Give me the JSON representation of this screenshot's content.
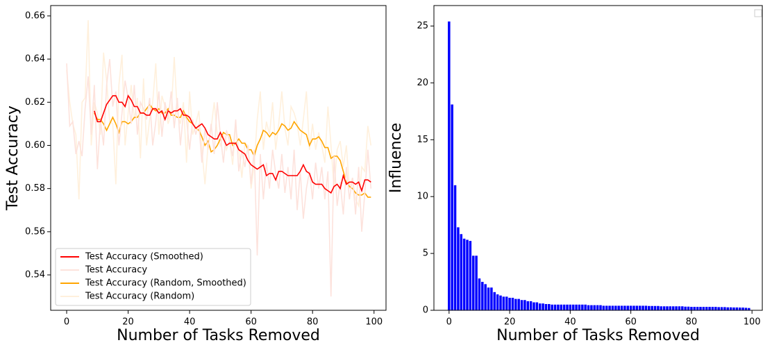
{
  "chart_data": [
    {
      "type": "line",
      "x_label": "Number of Tasks Removed",
      "y_label": "Test Accuracy",
      "x": [
        0,
        1,
        2,
        3,
        4,
        5,
        6,
        7,
        8,
        9,
        10,
        11,
        12,
        13,
        14,
        15,
        16,
        17,
        18,
        19,
        20,
        21,
        22,
        23,
        24,
        25,
        26,
        27,
        28,
        29,
        30,
        31,
        32,
        33,
        34,
        35,
        36,
        37,
        38,
        39,
        40,
        41,
        42,
        43,
        44,
        45,
        46,
        47,
        48,
        49,
        50,
        51,
        52,
        53,
        54,
        55,
        56,
        57,
        58,
        59,
        60,
        61,
        62,
        63,
        64,
        65,
        66,
        67,
        68,
        69,
        70,
        71,
        72,
        73,
        74,
        75,
        76,
        77,
        78,
        79,
        80,
        81,
        82,
        83,
        84,
        85,
        86,
        87,
        88,
        89,
        90,
        91,
        92,
        93,
        94,
        95,
        96,
        97,
        98,
        99
      ],
      "series": [
        {
          "name": "Test Accuracy (Smoothed)",
          "color": "#ff0000",
          "values": [
            null,
            null,
            null,
            null,
            null,
            null,
            null,
            null,
            null,
            0.616,
            0.611,
            0.611,
            0.615,
            0.619,
            0.621,
            0.623,
            0.623,
            0.62,
            0.62,
            0.618,
            0.623,
            0.621,
            0.618,
            0.618,
            0.615,
            0.615,
            0.614,
            0.614,
            0.617,
            0.617,
            0.615,
            0.616,
            0.612,
            0.616,
            0.615,
            0.616,
            0.616,
            0.617,
            0.614,
            0.614,
            0.613,
            0.61,
            0.608,
            0.609,
            0.61,
            0.608,
            0.605,
            0.604,
            0.603,
            0.603,
            0.606,
            0.603,
            0.6,
            0.601,
            0.601,
            0.601,
            0.598,
            0.597,
            0.596,
            0.593,
            0.591,
            0.59,
            0.589,
            0.59,
            0.591,
            0.586,
            0.587,
            0.587,
            0.584,
            0.588,
            0.588,
            0.587,
            0.586,
            0.586,
            0.586,
            0.586,
            0.588,
            0.591,
            0.588,
            0.587,
            0.583,
            0.582,
            0.582,
            0.582,
            0.58,
            0.579,
            0.578,
            0.581,
            0.582,
            0.58,
            0.586,
            0.582,
            0.583,
            0.583,
            0.582,
            0.583,
            0.579,
            0.584,
            0.584,
            0.583
          ]
        },
        {
          "name": "Test Accuracy",
          "color": "#fde2dc",
          "values": [
            0.638,
            0.609,
            0.611,
            0.596,
            0.602,
            0.595,
            0.617,
            0.632,
            0.605,
            0.628,
            0.589,
            0.612,
            0.6,
            0.628,
            0.64,
            0.618,
            0.625,
            0.6,
            0.615,
            0.63,
            0.622,
            0.61,
            0.628,
            0.605,
            0.62,
            0.617,
            0.612,
            0.622,
            0.6,
            0.611,
            0.625,
            0.604,
            0.62,
            0.612,
            0.625,
            0.608,
            0.622,
            0.6,
            0.615,
            0.612,
            0.598,
            0.612,
            0.605,
            0.61,
            0.592,
            0.608,
            0.598,
            0.61,
            0.596,
            0.62,
            0.605,
            0.592,
            0.607,
            0.602,
            0.595,
            0.612,
            0.588,
            0.598,
            0.59,
            0.6,
            0.582,
            0.598,
            0.549,
            0.596,
            0.575,
            0.592,
            0.58,
            0.598,
            0.587,
            0.58,
            0.596,
            0.578,
            0.59,
            0.575,
            0.598,
            0.57,
            0.588,
            0.566,
            0.58,
            0.588,
            0.575,
            0.592,
            0.58,
            0.59,
            0.575,
            0.588,
            0.53,
            0.595,
            0.572,
            0.583,
            0.568,
            0.59,
            0.575,
            0.585,
            0.568,
            0.59,
            0.56,
            0.578,
            0.598,
            0.58
          ]
        },
        {
          "name": "Test Accuracy (Random, Smoothed)",
          "color": "#ffa500",
          "values": [
            null,
            null,
            null,
            null,
            null,
            null,
            null,
            null,
            null,
            0.615,
            0.612,
            0.612,
            0.61,
            0.607,
            0.61,
            0.613,
            0.61,
            0.606,
            0.611,
            0.611,
            0.61,
            0.611,
            0.613,
            0.613,
            0.615,
            0.615,
            0.617,
            0.619,
            0.617,
            0.616,
            0.617,
            0.615,
            0.615,
            0.617,
            0.614,
            0.614,
            0.613,
            0.613,
            0.616,
            0.613,
            0.611,
            0.61,
            0.608,
            0.607,
            0.604,
            0.6,
            0.602,
            0.597,
            0.598,
            0.6,
            0.603,
            0.606,
            0.605,
            0.605,
            0.6,
            0.601,
            0.603,
            0.601,
            0.601,
            0.598,
            0.598,
            0.595,
            0.6,
            0.603,
            0.607,
            0.606,
            0.604,
            0.606,
            0.605,
            0.607,
            0.61,
            0.609,
            0.607,
            0.608,
            0.611,
            0.609,
            0.607,
            0.606,
            0.605,
            0.6,
            0.603,
            0.603,
            0.604,
            0.602,
            0.599,
            0.599,
            0.594,
            0.595,
            0.595,
            0.593,
            0.588,
            0.583,
            0.581,
            0.58,
            0.578,
            0.577,
            0.577,
            0.578,
            0.576,
            0.576
          ]
        },
        {
          "name": "Test Accuracy (Random)",
          "color": "#fff0dc",
          "values": [
            0.635,
            0.62,
            0.61,
            0.605,
            0.575,
            0.62,
            0.622,
            0.658,
            0.6,
            0.62,
            0.615,
            0.605,
            0.643,
            0.63,
            0.611,
            0.61,
            0.582,
            0.628,
            0.642,
            0.6,
            0.615,
            0.628,
            0.612,
            0.622,
            0.594,
            0.631,
            0.6,
            0.612,
            0.62,
            0.638,
            0.605,
            0.623,
            0.618,
            0.61,
            0.615,
            0.641,
            0.615,
            0.61,
            0.62,
            0.592,
            0.625,
            0.605,
            0.61,
            0.616,
            0.598,
            0.582,
            0.6,
            0.608,
            0.62,
            0.605,
            0.6,
            0.605,
            0.598,
            0.602,
            0.591,
            0.609,
            0.598,
            0.585,
            0.601,
            0.6,
            0.58,
            0.591,
            0.612,
            0.625,
            0.598,
            0.611,
            0.605,
            0.62,
            0.598,
            0.61,
            0.625,
            0.608,
            0.6,
            0.618,
            0.615,
            0.61,
            0.6,
            0.612,
            0.625,
            0.598,
            0.61,
            0.598,
            0.606,
            0.6,
            0.592,
            0.618,
            0.6,
            0.58,
            0.598,
            0.602,
            0.59,
            0.6,
            0.58,
            0.585,
            0.575,
            0.572,
            0.59,
            0.588,
            0.609,
            0.6
          ]
        }
      ],
      "xlim": [
        -5.2,
        103.9
      ],
      "xticks": [
        0,
        20,
        40,
        60,
        80,
        100
      ],
      "ylim": [
        0.5236,
        0.6648
      ],
      "yticks": [
        0.54,
        0.56,
        0.58,
        {
          "value": 0.6,
          "label": "0.60"
        },
        0.62,
        0.64,
        0.66
      ],
      "legend": "lower left"
    },
    {
      "type": "bar",
      "x_label": "Number of Tasks Removed",
      "y_label": "Influence",
      "color": "#0000ff",
      "x": [
        0,
        1,
        2,
        3,
        4,
        5,
        6,
        7,
        8,
        9,
        10,
        11,
        12,
        13,
        14,
        15,
        16,
        17,
        18,
        19,
        20,
        21,
        22,
        23,
        24,
        25,
        26,
        27,
        28,
        29,
        30,
        31,
        32,
        33,
        34,
        35,
        36,
        37,
        38,
        39,
        40,
        41,
        42,
        43,
        44,
        45,
        46,
        47,
        48,
        49,
        50,
        51,
        52,
        53,
        54,
        55,
        56,
        57,
        58,
        59,
        60,
        61,
        62,
        63,
        64,
        65,
        66,
        67,
        68,
        69,
        70,
        71,
        72,
        73,
        74,
        75,
        76,
        77,
        78,
        79,
        80,
        81,
        82,
        83,
        84,
        85,
        86,
        87,
        88,
        89,
        90,
        91,
        92,
        93,
        94,
        95,
        96,
        97,
        98,
        99
      ],
      "values": [
        25.4,
        18.1,
        11.0,
        7.3,
        6.7,
        6.3,
        6.2,
        6.1,
        4.8,
        4.8,
        2.8,
        2.5,
        2.3,
        2.0,
        2.0,
        1.6,
        1.4,
        1.3,
        1.2,
        1.2,
        1.1,
        1.1,
        1.0,
        1.0,
        0.9,
        0.9,
        0.8,
        0.8,
        0.7,
        0.7,
        0.6,
        0.6,
        0.55,
        0.55,
        0.5,
        0.5,
        0.5,
        0.5,
        0.5,
        0.5,
        0.5,
        0.5,
        0.5,
        0.5,
        0.5,
        0.5,
        0.45,
        0.45,
        0.45,
        0.45,
        0.45,
        0.4,
        0.4,
        0.4,
        0.4,
        0.4,
        0.4,
        0.4,
        0.4,
        0.4,
        0.4,
        0.4,
        0.4,
        0.4,
        0.4,
        0.4,
        0.38,
        0.38,
        0.38,
        0.38,
        0.35,
        0.35,
        0.35,
        0.35,
        0.35,
        0.35,
        0.35,
        0.35,
        0.32,
        0.32,
        0.3,
        0.3,
        0.3,
        0.3,
        0.3,
        0.3,
        0.3,
        0.3,
        0.3,
        0.28,
        0.28,
        0.28,
        0.26,
        0.26,
        0.25,
        0.25,
        0.24,
        0.24,
        0.22,
        0.2
      ],
      "xlim": [
        -5.0,
        103.4
      ],
      "xticks": [
        0,
        20,
        40,
        60,
        80,
        100
      ],
      "ylim": [
        0,
        26.8
      ],
      "yticks": [
        0,
        5,
        10,
        15,
        20,
        25
      ]
    }
  ]
}
